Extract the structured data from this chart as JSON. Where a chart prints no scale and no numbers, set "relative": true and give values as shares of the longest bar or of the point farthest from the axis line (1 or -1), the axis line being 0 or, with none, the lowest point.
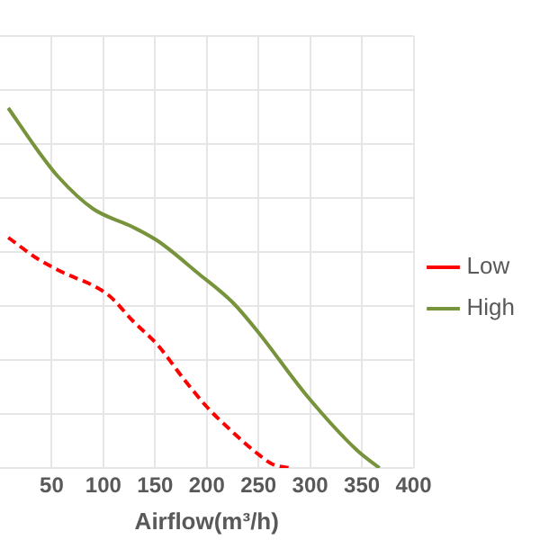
{
  "chart_data": {
    "type": "line",
    "xlabel": "Airflow(m³/h)",
    "relative": true,
    "xlim": [
      0,
      400
    ],
    "xticks": [
      50,
      100,
      150,
      200,
      250,
      300,
      350,
      400
    ],
    "grid": true,
    "legend": "right",
    "marker": "none",
    "series": [
      {
        "name": "Low",
        "color": "#ff0000",
        "line_style": "dashed",
        "x": [
          8,
          37,
          56,
          105,
          128,
          153,
          177,
          200,
          225,
          249,
          264,
          280
        ],
        "values": [
          0.64,
          0.58,
          0.55,
          0.48,
          0.41,
          0.34,
          0.25,
          0.17,
          0.1,
          0.04,
          0.01,
          0
        ]
      },
      {
        "name": "High",
        "color": "#77933c",
        "line_style": "solid",
        "x": [
          8,
          37,
          56,
          90,
          128,
          153,
          192,
          225,
          249,
          297,
          345,
          367
        ],
        "values": [
          1,
          0.88,
          0.81,
          0.72,
          0.67,
          0.63,
          0.54,
          0.46,
          0.38,
          0.2,
          0.05,
          0
        ]
      }
    ]
  }
}
